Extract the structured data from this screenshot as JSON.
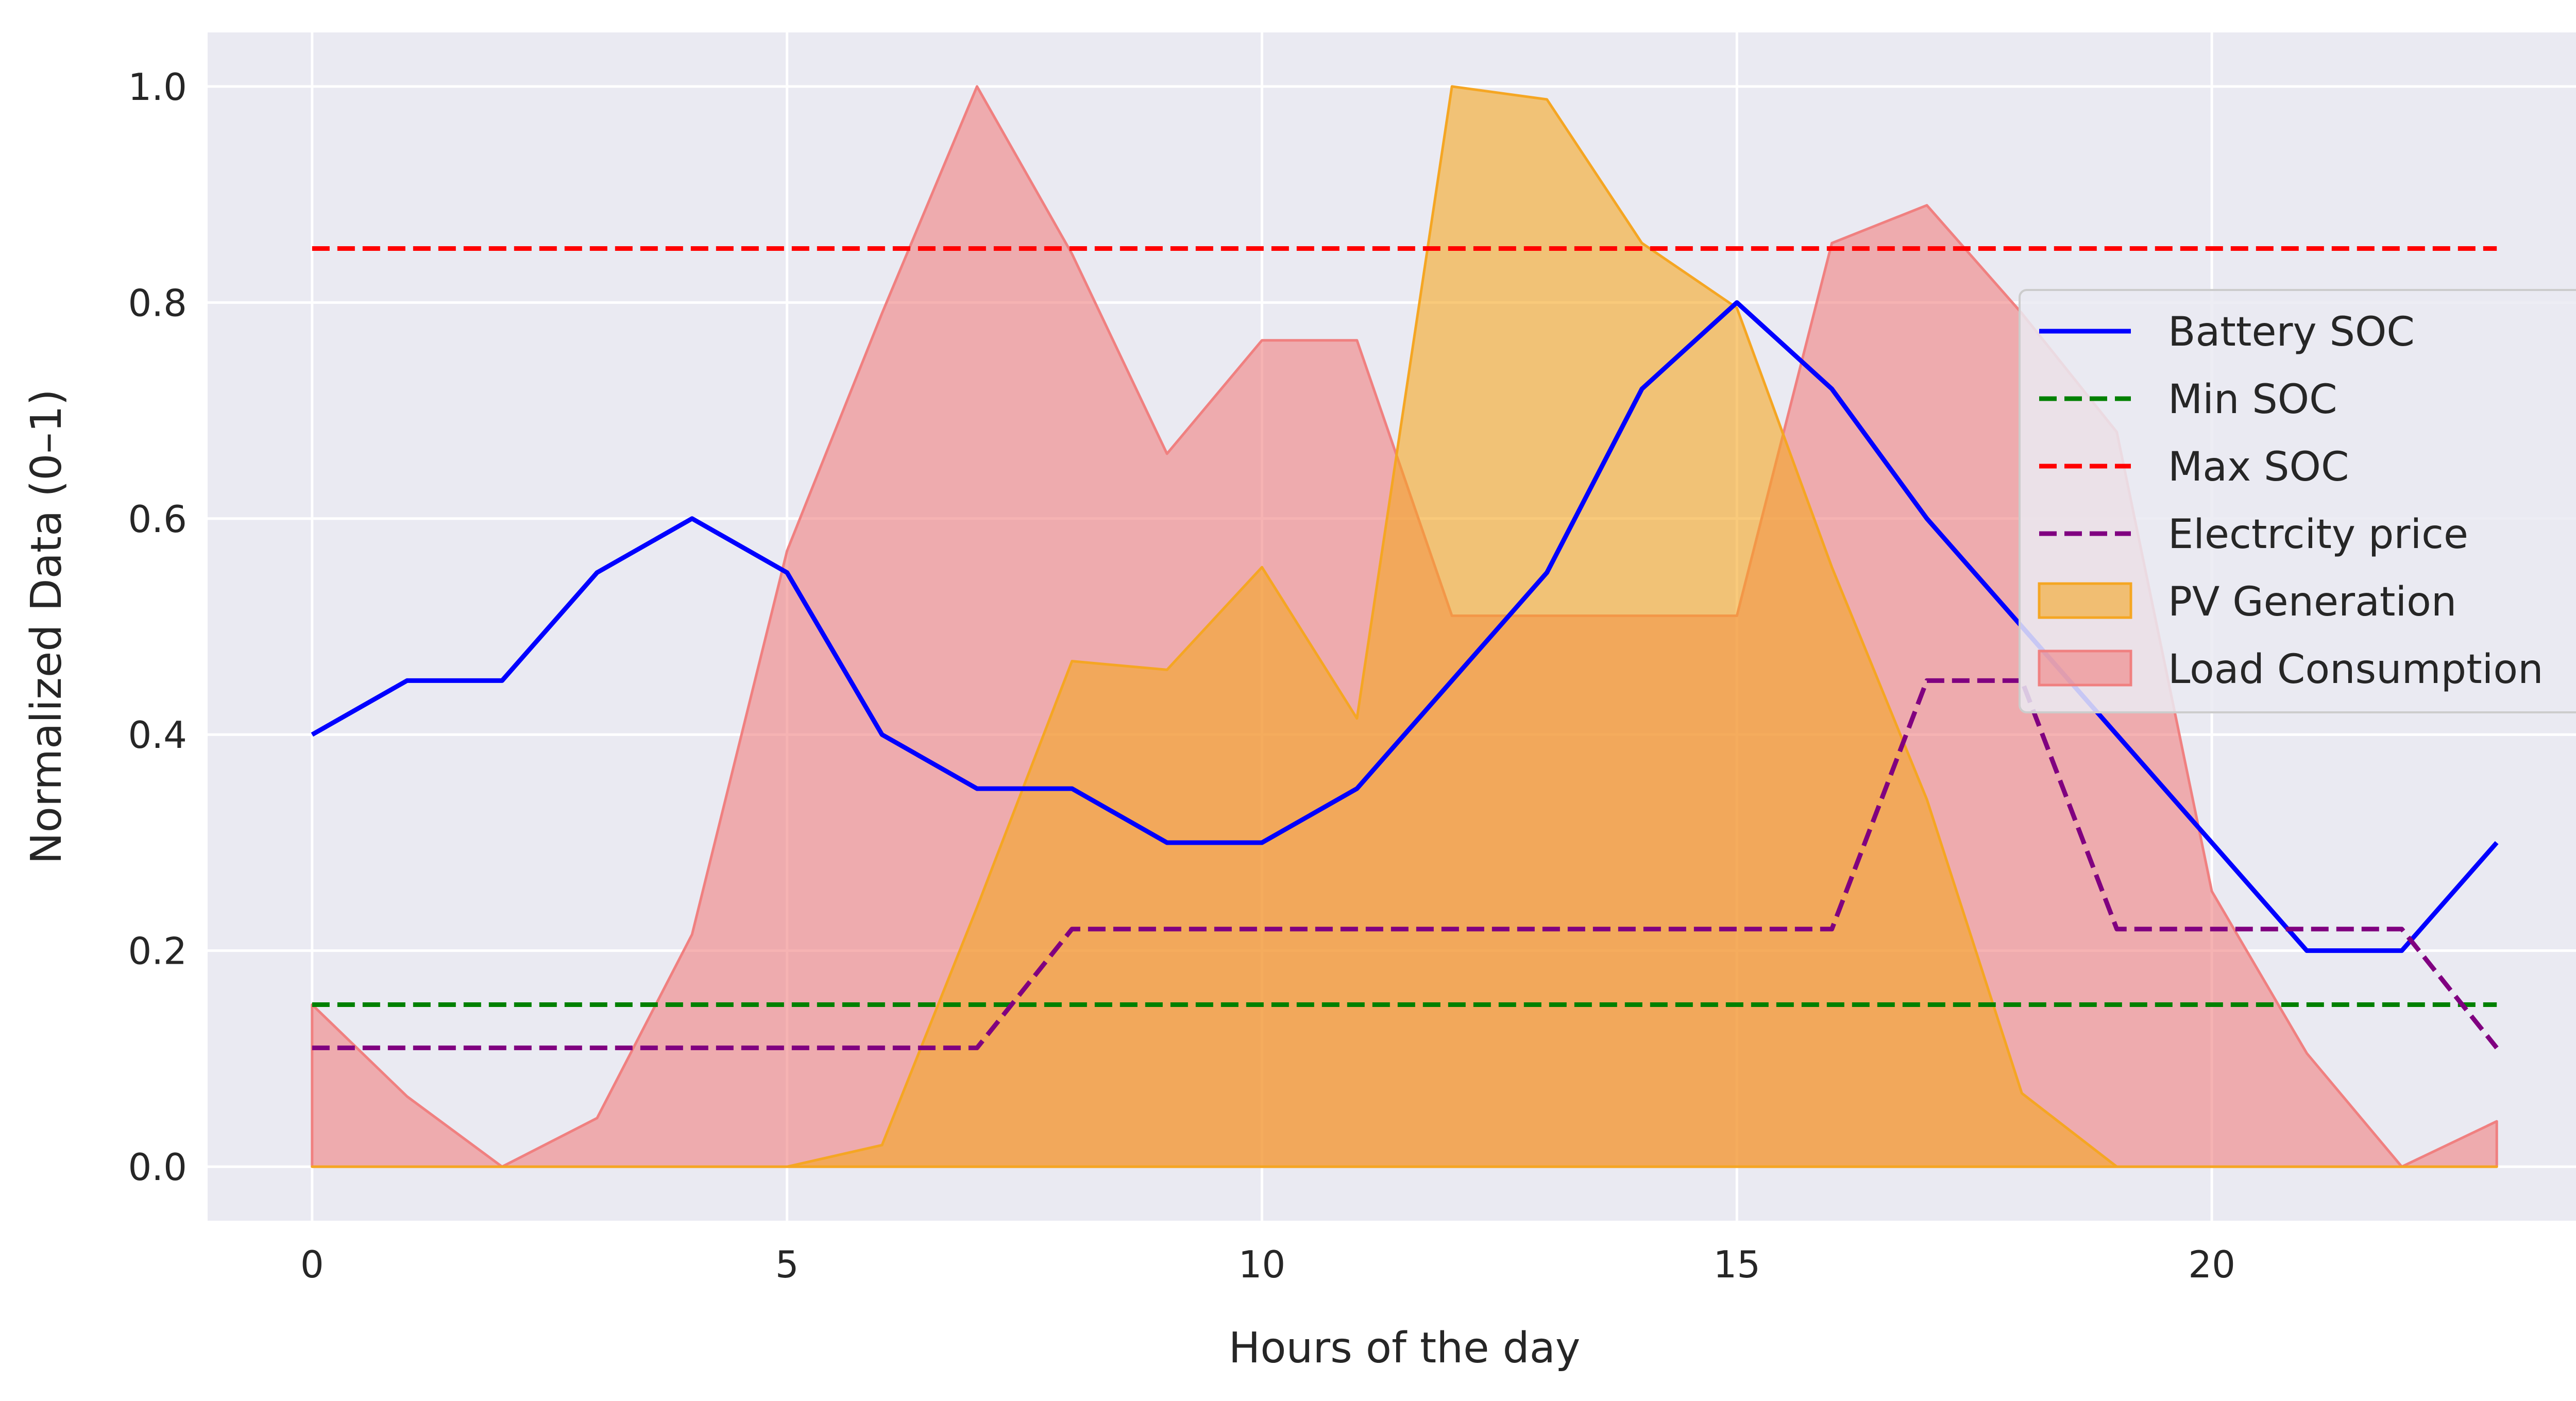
{
  "chart_data": {
    "type": "line",
    "title": "",
    "xlabel": "Hours of the day",
    "ylabel": "Normalized Data (0–1)",
    "xlim": [
      -1.1,
      24.1
    ],
    "ylim": [
      -0.05,
      1.05
    ],
    "xticks": [
      0,
      5,
      10,
      15,
      20
    ],
    "yticks": [
      0.0,
      0.2,
      0.4,
      0.6,
      0.8,
      1.0
    ],
    "xtick_labels": [
      "0",
      "5",
      "10",
      "15",
      "20"
    ],
    "ytick_labels": [
      "0.0",
      "0.2",
      "0.4",
      "0.6",
      "0.8",
      "1.0"
    ],
    "grid": true,
    "legend_position": "right",
    "x": [
      0,
      1,
      2,
      3,
      4,
      5,
      6,
      7,
      8,
      9,
      10,
      11,
      12,
      13,
      14,
      15,
      16,
      17,
      18,
      19,
      20,
      21,
      22,
      23
    ],
    "series": [
      {
        "name": "Load Consumption",
        "kind": "area",
        "color": "#f08080",
        "values": [
          0.15,
          0.065,
          0.0,
          0.045,
          0.215,
          0.57,
          0.79,
          1.0,
          0.845,
          0.66,
          0.765,
          0.765,
          0.51,
          0.51,
          0.51,
          0.51,
          0.855,
          0.89,
          0.79,
          0.68,
          0.255,
          0.105,
          0.0,
          0.042
        ]
      },
      {
        "name": "PV Generation",
        "kind": "area",
        "color": "#f5a623",
        "values": [
          0.0,
          0.0,
          0.0,
          0.0,
          0.0,
          0.0,
          0.02,
          0.24,
          0.468,
          0.46,
          0.555,
          0.415,
          1.0,
          0.988,
          0.855,
          0.795,
          0.555,
          0.34,
          0.068,
          0.0,
          0.0,
          0.0,
          0.0,
          0.0
        ]
      },
      {
        "name": "Battery SOC",
        "kind": "line",
        "dashed": false,
        "color": "#0000ff",
        "values": [
          0.4,
          0.45,
          0.45,
          0.55,
          0.6,
          0.55,
          0.4,
          0.35,
          0.35,
          0.3,
          0.3,
          0.35,
          0.45,
          0.55,
          0.72,
          0.8,
          0.72,
          0.6,
          0.5,
          0.4,
          0.3,
          0.2,
          0.2,
          0.3
        ]
      },
      {
        "name": "Min SOC",
        "kind": "line",
        "dashed": true,
        "color": "#008000",
        "values": [
          0.15,
          0.15,
          0.15,
          0.15,
          0.15,
          0.15,
          0.15,
          0.15,
          0.15,
          0.15,
          0.15,
          0.15,
          0.15,
          0.15,
          0.15,
          0.15,
          0.15,
          0.15,
          0.15,
          0.15,
          0.15,
          0.15,
          0.15,
          0.15
        ]
      },
      {
        "name": "Max SOC",
        "kind": "line",
        "dashed": true,
        "color": "#ff0000",
        "values": [
          0.85,
          0.85,
          0.85,
          0.85,
          0.85,
          0.85,
          0.85,
          0.85,
          0.85,
          0.85,
          0.85,
          0.85,
          0.85,
          0.85,
          0.85,
          0.85,
          0.85,
          0.85,
          0.85,
          0.85,
          0.85,
          0.85,
          0.85,
          0.85
        ]
      },
      {
        "name": "Electrcity price",
        "kind": "line",
        "dashed": true,
        "color": "#800080",
        "values": [
          0.11,
          0.11,
          0.11,
          0.11,
          0.11,
          0.11,
          0.11,
          0.11,
          0.22,
          0.22,
          0.22,
          0.22,
          0.22,
          0.22,
          0.22,
          0.22,
          0.22,
          0.45,
          0.45,
          0.22,
          0.22,
          0.22,
          0.22,
          0.11
        ]
      }
    ],
    "legend": [
      {
        "label": "Battery SOC",
        "kind": "line",
        "dashed": false,
        "color": "#0000ff"
      },
      {
        "label": "Min SOC",
        "kind": "line",
        "dashed": true,
        "color": "#008000"
      },
      {
        "label": "Max SOC",
        "kind": "line",
        "dashed": true,
        "color": "#ff0000"
      },
      {
        "label": "Electrcity price",
        "kind": "line",
        "dashed": true,
        "color": "#800080"
      },
      {
        "label": "PV Generation",
        "kind": "area",
        "color": "#f5a623"
      },
      {
        "label": "Load Consumption",
        "kind": "area",
        "color": "#f08080"
      }
    ],
    "style": {
      "plot_background": "#eaeaf2",
      "grid_color": "#ffffff"
    }
  }
}
